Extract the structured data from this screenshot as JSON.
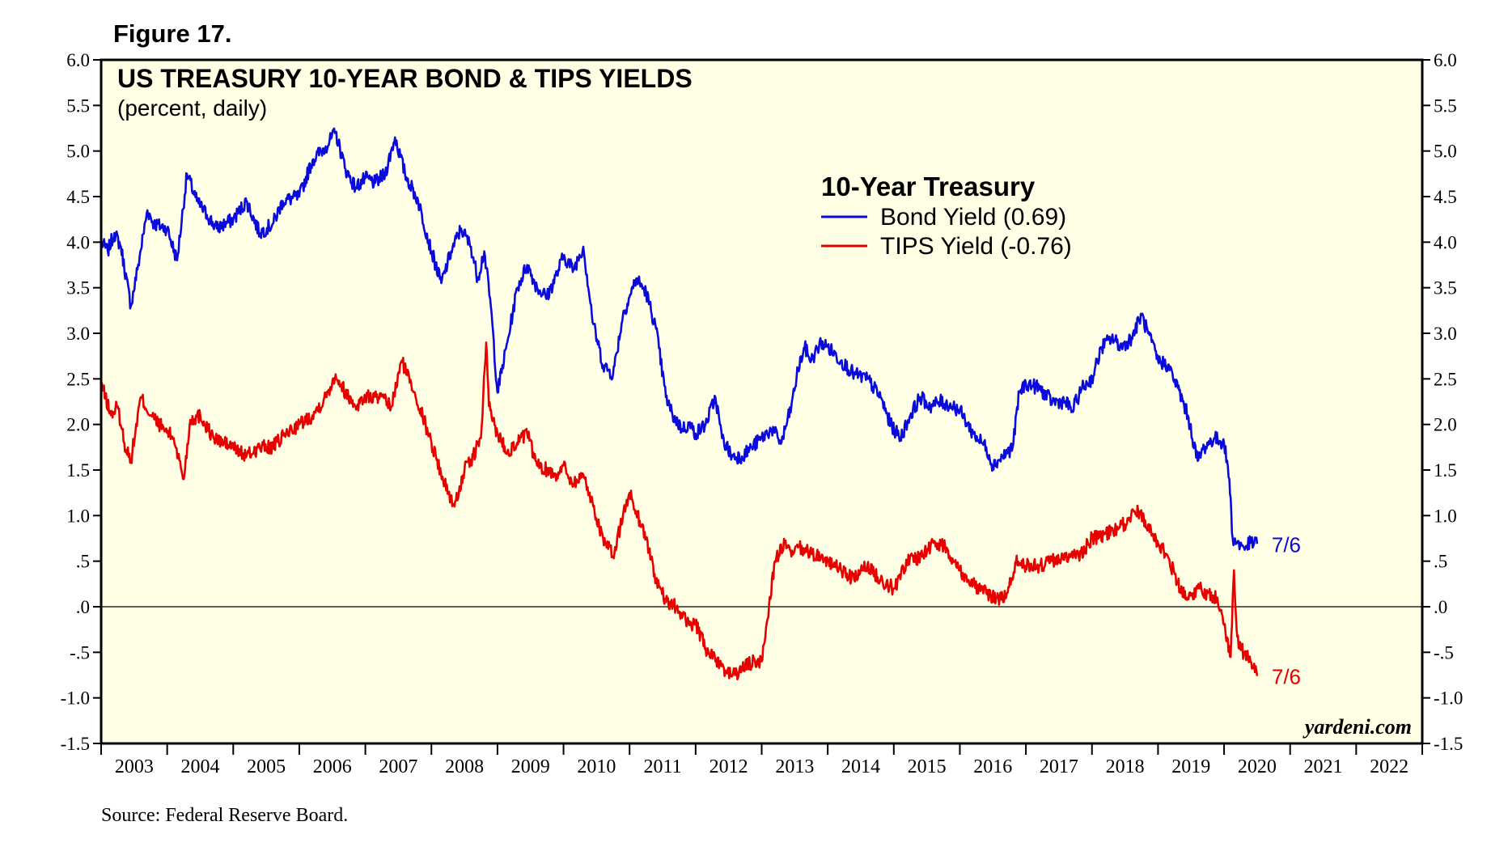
{
  "figure_label": "Figure 17.",
  "source": "Source: Federal Reserve Board.",
  "brand": "yardeni.com",
  "colors": {
    "bond": "#0a0adc",
    "tips": "#e60000",
    "plot_bg": "#ffffe5"
  },
  "chart_data": {
    "type": "line",
    "title": "US TREASURY 10-YEAR BOND & TIPS YIELDS",
    "subtitle": "(percent, daily)",
    "legend_title": "10-Year Treasury",
    "legend_position": "top-center",
    "xlabel": "",
    "ylabel": "",
    "ylim": [
      -1.5,
      6.0
    ],
    "xlim": [
      2003.0,
      2023.0
    ],
    "y_ticks": [
      -1.5,
      -1.0,
      -0.5,
      0.0,
      0.5,
      1.0,
      1.5,
      2.0,
      2.5,
      3.0,
      3.5,
      4.0,
      4.5,
      5.0,
      5.5,
      6.0
    ],
    "y_tick_labels": [
      "-1.5",
      "-1.0",
      "-.5",
      ".0",
      ".5",
      "1.0",
      "1.5",
      "2.0",
      "2.5",
      "3.0",
      "3.5",
      "4.0",
      "4.5",
      "5.0",
      "5.5",
      "6.0"
    ],
    "x_categories": [
      "2003",
      "2004",
      "2005",
      "2006",
      "2007",
      "2008",
      "2009",
      "2010",
      "2011",
      "2012",
      "2013",
      "2014",
      "2015",
      "2016",
      "2017",
      "2018",
      "2019",
      "2020",
      "2021",
      "2022"
    ],
    "zero_line": true,
    "series": [
      {
        "name": "Bond Yield (0.69)",
        "key": "bond",
        "end_label": "7/6",
        "x": [
          2003.0,
          2003.1,
          2003.2,
          2003.3,
          2003.45,
          2003.55,
          2003.7,
          2003.8,
          2004.0,
          2004.15,
          2004.3,
          2004.45,
          2004.6,
          2004.75,
          2005.0,
          2005.2,
          2005.4,
          2005.6,
          2005.75,
          2006.0,
          2006.2,
          2006.4,
          2006.55,
          2006.7,
          2006.85,
          2007.0,
          2007.15,
          2007.3,
          2007.45,
          2007.6,
          2007.8,
          2008.0,
          2008.15,
          2008.3,
          2008.45,
          2008.6,
          2008.7,
          2008.8,
          2008.9,
          2009.0,
          2009.15,
          2009.3,
          2009.45,
          2009.6,
          2009.75,
          2009.9,
          2010.0,
          2010.15,
          2010.3,
          2010.45,
          2010.6,
          2010.75,
          2010.9,
          2011.0,
          2011.1,
          2011.25,
          2011.4,
          2011.55,
          2011.65,
          2011.8,
          2011.9,
          2012.0,
          2012.15,
          2012.3,
          2012.4,
          2012.55,
          2012.7,
          2012.85,
          2013.0,
          2013.15,
          2013.3,
          2013.45,
          2013.55,
          2013.65,
          2013.75,
          2013.9,
          2014.0,
          2014.2,
          2014.4,
          2014.6,
          2014.8,
          2014.95,
          2015.1,
          2015.25,
          2015.4,
          2015.55,
          2015.7,
          2015.9,
          2016.0,
          2016.2,
          2016.4,
          2016.5,
          2016.65,
          2016.8,
          2016.9,
          2017.0,
          2017.2,
          2017.4,
          2017.6,
          2017.7,
          2017.85,
          2018.0,
          2018.15,
          2018.3,
          2018.45,
          2018.6,
          2018.75,
          2018.85,
          2019.0,
          2019.15,
          2019.3,
          2019.45,
          2019.6,
          2019.7,
          2019.85,
          2020.0,
          2020.08,
          2020.13,
          2020.2,
          2020.3,
          2020.4,
          2020.5
        ],
        "y": [
          4.0,
          3.9,
          4.1,
          3.95,
          3.3,
          3.7,
          4.35,
          4.2,
          4.15,
          3.8,
          4.75,
          4.45,
          4.3,
          4.15,
          4.25,
          4.45,
          4.1,
          4.2,
          4.45,
          4.5,
          4.9,
          5.05,
          5.2,
          4.8,
          4.6,
          4.7,
          4.65,
          4.75,
          5.15,
          4.75,
          4.45,
          3.9,
          3.55,
          3.9,
          4.15,
          3.95,
          3.6,
          3.9,
          3.3,
          2.35,
          2.9,
          3.5,
          3.75,
          3.5,
          3.4,
          3.65,
          3.85,
          3.7,
          3.95,
          3.1,
          2.65,
          2.55,
          3.2,
          3.4,
          3.6,
          3.45,
          3.05,
          2.3,
          2.1,
          1.95,
          2.0,
          1.9,
          2.0,
          2.3,
          1.85,
          1.65,
          1.65,
          1.75,
          1.85,
          1.95,
          1.8,
          2.2,
          2.6,
          2.85,
          2.7,
          2.9,
          2.85,
          2.7,
          2.55,
          2.5,
          2.3,
          2.0,
          1.85,
          2.1,
          2.3,
          2.2,
          2.25,
          2.2,
          2.15,
          1.9,
          1.75,
          1.55,
          1.65,
          1.75,
          2.35,
          2.45,
          2.4,
          2.25,
          2.25,
          2.15,
          2.4,
          2.5,
          2.85,
          2.95,
          2.85,
          2.95,
          3.2,
          3.0,
          2.7,
          2.65,
          2.4,
          2.1,
          1.6,
          1.75,
          1.85,
          1.8,
          1.4,
          0.75,
          0.7,
          0.65,
          0.7,
          0.69
        ]
      },
      {
        "name": "TIPS Yield (-0.76)",
        "key": "tips",
        "end_label": "7/6",
        "x": [
          2003.0,
          2003.15,
          2003.25,
          2003.35,
          2003.45,
          2003.6,
          2003.75,
          2003.95,
          2004.1,
          2004.25,
          2004.35,
          2004.5,
          2004.7,
          2005.0,
          2005.2,
          2005.4,
          2005.6,
          2005.8,
          2006.0,
          2006.2,
          2006.4,
          2006.55,
          2006.7,
          2006.85,
          2007.0,
          2007.2,
          2007.4,
          2007.55,
          2007.75,
          2008.0,
          2008.2,
          2008.35,
          2008.5,
          2008.6,
          2008.75,
          2008.83,
          2008.87,
          2009.0,
          2009.15,
          2009.3,
          2009.45,
          2009.6,
          2009.75,
          2009.9,
          2010.0,
          2010.15,
          2010.3,
          2010.45,
          2010.6,
          2010.75,
          2010.9,
          2011.0,
          2011.1,
          2011.25,
          2011.4,
          2011.55,
          2011.7,
          2011.85,
          2012.0,
          2012.15,
          2012.3,
          2012.45,
          2012.6,
          2012.75,
          2012.9,
          2013.0,
          2013.2,
          2013.35,
          2013.45,
          2013.55,
          2013.7,
          2013.9,
          2014.0,
          2014.2,
          2014.4,
          2014.6,
          2014.8,
          2015.0,
          2015.2,
          2015.4,
          2015.6,
          2015.8,
          2016.0,
          2016.2,
          2016.4,
          2016.55,
          2016.7,
          2016.85,
          2017.0,
          2017.2,
          2017.4,
          2017.6,
          2017.8,
          2018.0,
          2018.2,
          2018.4,
          2018.55,
          2018.7,
          2018.85,
          2019.0,
          2019.15,
          2019.3,
          2019.45,
          2019.6,
          2019.75,
          2019.9,
          2020.0,
          2020.1,
          2020.15,
          2020.18,
          2020.22,
          2020.3,
          2020.4,
          2020.5
        ],
        "y": [
          2.45,
          2.1,
          2.2,
          1.8,
          1.6,
          2.3,
          2.1,
          1.95,
          1.85,
          1.4,
          2.05,
          2.1,
          1.85,
          1.75,
          1.65,
          1.75,
          1.75,
          1.9,
          2.0,
          2.1,
          2.3,
          2.55,
          2.35,
          2.2,
          2.3,
          2.3,
          2.2,
          2.7,
          2.35,
          1.8,
          1.35,
          1.1,
          1.5,
          1.6,
          1.85,
          2.9,
          2.2,
          1.9,
          1.7,
          1.8,
          1.9,
          1.55,
          1.5,
          1.45,
          1.55,
          1.35,
          1.45,
          1.1,
          0.75,
          0.55,
          1.0,
          1.25,
          1.05,
          0.75,
          0.3,
          0.05,
          0.0,
          -0.15,
          -0.2,
          -0.45,
          -0.6,
          -0.7,
          -0.75,
          -0.65,
          -0.6,
          -0.6,
          0.5,
          0.7,
          0.55,
          0.65,
          0.6,
          0.55,
          0.5,
          0.4,
          0.3,
          0.45,
          0.3,
          0.2,
          0.5,
          0.55,
          0.7,
          0.65,
          0.4,
          0.25,
          0.15,
          0.1,
          0.1,
          0.5,
          0.45,
          0.45,
          0.5,
          0.55,
          0.55,
          0.75,
          0.8,
          0.85,
          0.95,
          1.05,
          0.9,
          0.7,
          0.55,
          0.25,
          0.1,
          0.2,
          0.15,
          0.1,
          -0.2,
          -0.55,
          0.4,
          -0.1,
          -0.45,
          -0.5,
          -0.6,
          -0.76
        ]
      }
    ]
  }
}
